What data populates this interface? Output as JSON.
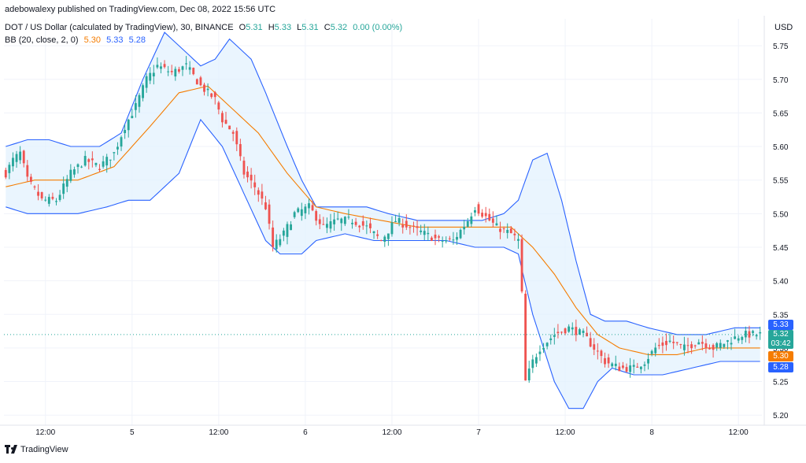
{
  "header": {
    "published": "adebowalexy published on TradingView.com, Dec 08, 2022 15:56 UTC",
    "symbol": "DOT / US Dollar (calculated by TradingView), 30, BINANCE",
    "o_label": "O",
    "o_value": "5.31",
    "h_label": "H",
    "h_value": "5.33",
    "l_label": "L",
    "l_value": "5.31",
    "c_label": "C",
    "c_value": "5.32",
    "change": "0.00 (0.00%)",
    "bb_label": "BB (20, close, 2, 0)",
    "bb_mid": "5.30",
    "bb_upper": "5.33",
    "bb_lower": "5.28"
  },
  "price_axis": {
    "currency": "USD"
  },
  "badges": {
    "upper": "5.33",
    "price": "5.32",
    "countdown": "03:42",
    "mid": "5.30",
    "lower": "5.28"
  },
  "footer": {
    "brand": "TradingView"
  },
  "colors": {
    "up": "#26a69a",
    "down": "#ef5350",
    "band": "#2962ff",
    "band_fill": "#e3f2fd",
    "basis": "#f57c00",
    "grid": "#f0f3fa"
  },
  "chart_data": {
    "type": "candlestick",
    "title": "DOT / US Dollar (calculated by TradingView), 30, BINANCE",
    "ylim": [
      5.185,
      5.79
    ],
    "yticks": [
      5.2,
      5.25,
      5.3,
      5.35,
      5.4,
      5.45,
      5.5,
      5.55,
      5.6,
      5.65,
      5.7,
      5.75
    ],
    "xticks": [
      {
        "label": "12:00",
        "i": 11
      },
      {
        "label": "5",
        "i": 35
      },
      {
        "label": "12:00",
        "i": 59
      },
      {
        "label": "6",
        "i": 83
      },
      {
        "label": "12:00",
        "i": 107
      },
      {
        "label": "7",
        "i": 131
      },
      {
        "label": "12:00",
        "i": 155
      },
      {
        "label": "8",
        "i": 179
      },
      {
        "label": "12:00",
        "i": 203
      }
    ],
    "grid": true,
    "current_price": 5.32,
    "series": [
      {
        "name": "price",
        "anchors": [
          [
            0,
            5.56
          ],
          [
            2,
            5.58
          ],
          [
            4,
            5.59
          ],
          [
            6,
            5.55
          ],
          [
            10,
            5.52
          ],
          [
            14,
            5.52
          ],
          [
            18,
            5.56
          ],
          [
            22,
            5.58
          ],
          [
            26,
            5.57
          ],
          [
            30,
            5.59
          ],
          [
            33,
            5.63
          ],
          [
            36,
            5.66
          ],
          [
            39,
            5.7
          ],
          [
            42,
            5.72
          ],
          [
            46,
            5.71
          ],
          [
            50,
            5.72
          ],
          [
            54,
            5.69
          ],
          [
            58,
            5.67
          ],
          [
            60,
            5.64
          ],
          [
            63,
            5.62
          ],
          [
            66,
            5.56
          ],
          [
            69,
            5.54
          ],
          [
            72,
            5.51
          ],
          [
            74,
            5.45
          ],
          [
            77,
            5.47
          ],
          [
            80,
            5.5
          ],
          [
            84,
            5.51
          ],
          [
            88,
            5.48
          ],
          [
            92,
            5.49
          ],
          [
            96,
            5.49
          ],
          [
            100,
            5.48
          ],
          [
            104,
            5.46
          ],
          [
            108,
            5.49
          ],
          [
            112,
            5.48
          ],
          [
            116,
            5.47
          ],
          [
            120,
            5.46
          ],
          [
            124,
            5.46
          ],
          [
            128,
            5.49
          ],
          [
            130,
            5.51
          ],
          [
            132,
            5.5
          ],
          [
            136,
            5.48
          ],
          [
            140,
            5.47
          ],
          [
            142,
            5.46
          ],
          [
            143,
            5.38
          ],
          [
            144,
            5.25
          ],
          [
            146,
            5.28
          ],
          [
            148,
            5.3
          ],
          [
            152,
            5.32
          ],
          [
            156,
            5.33
          ],
          [
            160,
            5.32
          ],
          [
            163,
            5.3
          ],
          [
            166,
            5.28
          ],
          [
            170,
            5.27
          ],
          [
            174,
            5.27
          ],
          [
            177,
            5.28
          ],
          [
            180,
            5.3
          ],
          [
            184,
            5.31
          ],
          [
            188,
            5.3
          ],
          [
            192,
            5.31
          ],
          [
            196,
            5.3
          ],
          [
            200,
            5.31
          ],
          [
            204,
            5.32
          ],
          [
            208,
            5.32
          ]
        ]
      },
      {
        "name": "BB basis",
        "anchors": [
          [
            0,
            5.54
          ],
          [
            8,
            5.55
          ],
          [
            20,
            5.55
          ],
          [
            30,
            5.57
          ],
          [
            40,
            5.63
          ],
          [
            48,
            5.68
          ],
          [
            56,
            5.69
          ],
          [
            62,
            5.66
          ],
          [
            70,
            5.62
          ],
          [
            78,
            5.56
          ],
          [
            86,
            5.51
          ],
          [
            94,
            5.5
          ],
          [
            104,
            5.49
          ],
          [
            114,
            5.48
          ],
          [
            124,
            5.48
          ],
          [
            132,
            5.48
          ],
          [
            140,
            5.48
          ],
          [
            146,
            5.45
          ],
          [
            152,
            5.41
          ],
          [
            158,
            5.36
          ],
          [
            164,
            5.32
          ],
          [
            170,
            5.3
          ],
          [
            178,
            5.29
          ],
          [
            186,
            5.29
          ],
          [
            194,
            5.3
          ],
          [
            202,
            5.3
          ],
          [
            208,
            5.3
          ]
        ]
      },
      {
        "name": "BB upper",
        "anchors": [
          [
            0,
            5.6
          ],
          [
            6,
            5.61
          ],
          [
            12,
            5.61
          ],
          [
            18,
            5.6
          ],
          [
            26,
            5.6
          ],
          [
            32,
            5.62
          ],
          [
            38,
            5.7
          ],
          [
            44,
            5.77
          ],
          [
            50,
            5.74
          ],
          [
            54,
            5.72
          ],
          [
            58,
            5.73
          ],
          [
            62,
            5.76
          ],
          [
            68,
            5.73
          ],
          [
            72,
            5.68
          ],
          [
            78,
            5.6
          ],
          [
            82,
            5.55
          ],
          [
            86,
            5.51
          ],
          [
            94,
            5.51
          ],
          [
            100,
            5.51
          ],
          [
            106,
            5.5
          ],
          [
            114,
            5.49
          ],
          [
            122,
            5.49
          ],
          [
            128,
            5.49
          ],
          [
            132,
            5.49
          ],
          [
            138,
            5.5
          ],
          [
            142,
            5.52
          ],
          [
            146,
            5.58
          ],
          [
            150,
            5.59
          ],
          [
            154,
            5.52
          ],
          [
            158,
            5.43
          ],
          [
            162,
            5.35
          ],
          [
            166,
            5.34
          ],
          [
            172,
            5.34
          ],
          [
            178,
            5.33
          ],
          [
            186,
            5.32
          ],
          [
            194,
            5.32
          ],
          [
            202,
            5.33
          ],
          [
            208,
            5.33
          ]
        ]
      },
      {
        "name": "BB lower",
        "anchors": [
          [
            0,
            5.51
          ],
          [
            6,
            5.5
          ],
          [
            12,
            5.5
          ],
          [
            20,
            5.5
          ],
          [
            28,
            5.51
          ],
          [
            34,
            5.52
          ],
          [
            40,
            5.52
          ],
          [
            48,
            5.56
          ],
          [
            54,
            5.64
          ],
          [
            60,
            5.6
          ],
          [
            66,
            5.53
          ],
          [
            72,
            5.46
          ],
          [
            76,
            5.44
          ],
          [
            82,
            5.44
          ],
          [
            86,
            5.46
          ],
          [
            94,
            5.47
          ],
          [
            102,
            5.46
          ],
          [
            108,
            5.46
          ],
          [
            114,
            5.46
          ],
          [
            122,
            5.46
          ],
          [
            130,
            5.45
          ],
          [
            138,
            5.45
          ],
          [
            142,
            5.44
          ],
          [
            146,
            5.35
          ],
          [
            152,
            5.25
          ],
          [
            156,
            5.21
          ],
          [
            160,
            5.21
          ],
          [
            164,
            5.25
          ],
          [
            168,
            5.27
          ],
          [
            174,
            5.26
          ],
          [
            182,
            5.26
          ],
          [
            190,
            5.27
          ],
          [
            198,
            5.28
          ],
          [
            204,
            5.28
          ],
          [
            208,
            5.28
          ]
        ]
      }
    ]
  }
}
